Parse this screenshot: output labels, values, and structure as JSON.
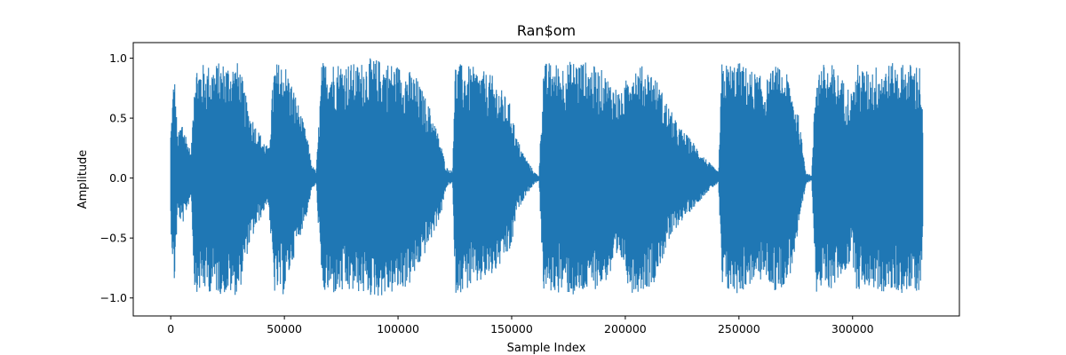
{
  "chart_data": {
    "type": "line",
    "title": "Ran$om",
    "xlabel": "Sample Index",
    "ylabel": "Amplitude",
    "xlim": [
      -16500,
      347000
    ],
    "ylim": [
      -1.15,
      1.13
    ],
    "x_ticks": [
      0,
      50000,
      100000,
      150000,
      200000,
      250000,
      300000
    ],
    "x_tick_labels": [
      "0",
      "50000",
      "100000",
      "150000",
      "200000",
      "250000",
      "300000"
    ],
    "y_ticks": [
      -1.0,
      -0.5,
      0.0,
      0.5,
      1.0
    ],
    "y_tick_labels": [
      "−1.0",
      "−0.5",
      "0.0",
      "0.5",
      "1.0"
    ],
    "grid": false,
    "legend": "none",
    "series_color": "#1f77b4",
    "sample_count": 331000,
    "envelope": {
      "x": [
        0,
        1500,
        3000,
        5000,
        9000,
        10500,
        16000,
        22000,
        30000,
        34000,
        38000,
        43000,
        45500,
        50000,
        55000,
        60000,
        62000,
        64000,
        66500,
        69000,
        75000,
        83000,
        85000,
        90000,
        95000,
        100000,
        105000,
        108000,
        115000,
        119000,
        121000,
        122000,
        124000,
        125000,
        126000,
        128000,
        135000,
        142000,
        150000,
        152000,
        156000,
        160000,
        162000,
        164000,
        166000,
        172000,
        176000,
        178500,
        182000,
        190000,
        199000,
        202000,
        206000,
        212000,
        218000,
        223000,
        230000,
        236000,
        241000,
        242500,
        250000,
        256000,
        262000,
        266000,
        272000,
        276000,
        279500,
        282000,
        284000,
        291000,
        300000,
        302000,
        306000,
        312000,
        320000,
        325000,
        330000,
        331000
      ],
      "upper": [
        0.4,
        0.93,
        0.35,
        0.5,
        0.2,
        0.97,
        0.95,
        0.97,
        0.97,
        0.6,
        0.42,
        0.25,
        0.96,
        0.98,
        0.7,
        0.35,
        0.12,
        0.05,
        0.97,
        0.98,
        0.98,
        0.95,
        1.0,
        1.0,
        0.98,
        0.95,
        0.9,
        0.85,
        0.55,
        0.28,
        0.1,
        0.08,
        0.06,
        0.97,
        0.97,
        0.95,
        0.92,
        0.85,
        0.6,
        0.35,
        0.18,
        0.05,
        0.02,
        0.96,
        0.97,
        0.96,
        0.98,
        1.0,
        0.98,
        0.9,
        0.7,
        0.98,
        0.95,
        0.9,
        0.65,
        0.45,
        0.3,
        0.15,
        0.05,
        0.96,
        0.97,
        0.9,
        0.82,
        0.95,
        0.85,
        0.55,
        0.05,
        0.02,
        0.96,
        0.95,
        0.72,
        0.96,
        0.9,
        0.96,
        0.96,
        0.96,
        0.96,
        0.4
      ],
      "lower": [
        -0.4,
        -0.95,
        -0.3,
        -0.4,
        -0.15,
        -0.95,
        -0.95,
        -0.97,
        -0.98,
        -0.6,
        -0.4,
        -0.2,
        -0.97,
        -0.98,
        -0.6,
        -0.3,
        -0.1,
        -0.05,
        -0.98,
        -0.98,
        -0.98,
        -0.96,
        -0.98,
        -1.0,
        -0.98,
        -0.96,
        -0.9,
        -0.8,
        -0.5,
        -0.3,
        -0.1,
        -0.06,
        -0.04,
        -0.96,
        -0.97,
        -0.95,
        -0.9,
        -0.82,
        -0.6,
        -0.3,
        -0.15,
        -0.05,
        -0.02,
        -0.95,
        -0.96,
        -0.96,
        -0.98,
        -1.02,
        -0.97,
        -0.9,
        -0.7,
        -0.96,
        -0.95,
        -0.9,
        -0.6,
        -0.4,
        -0.25,
        -0.12,
        -0.04,
        -0.96,
        -0.97,
        -0.88,
        -0.85,
        -0.96,
        -0.86,
        -0.5,
        -0.05,
        -0.02,
        -0.95,
        -0.93,
        -0.7,
        -0.96,
        -0.9,
        -0.96,
        -0.96,
        -0.96,
        -0.95,
        -0.4
      ]
    }
  }
}
